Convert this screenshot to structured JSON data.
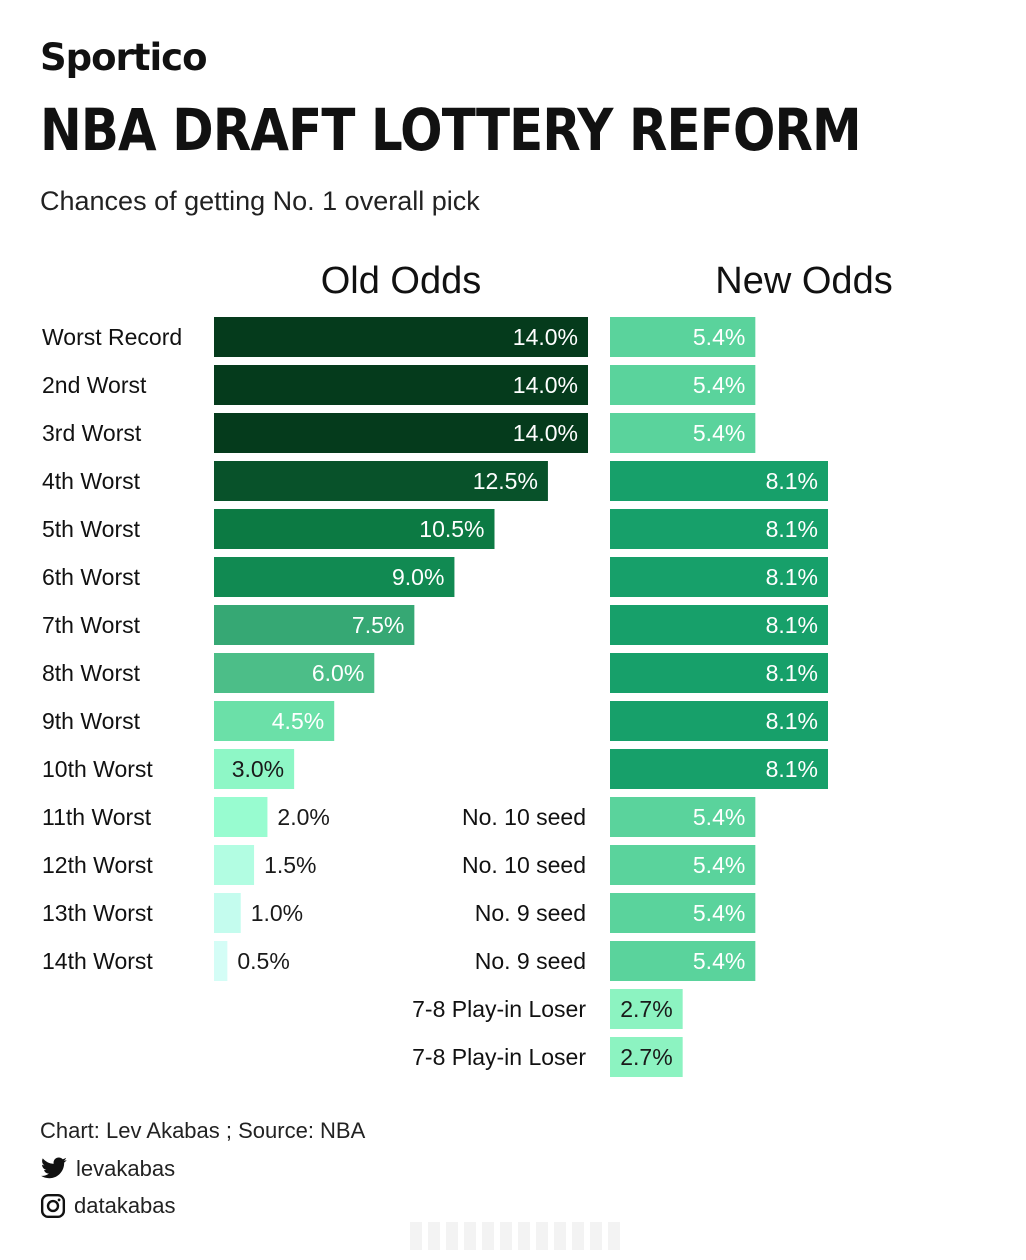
{
  "brand": "Sportico",
  "headline": "NBA DRAFT LOTTERY REFORM",
  "subtitle": "Chances of getting No. 1 overall pick",
  "chart_data": {
    "type": "bar",
    "orientation": "horizontal",
    "series": [
      {
        "name": "Old Odds",
        "categories": [
          "Worst Record",
          "2nd Worst",
          "3rd Worst",
          "4th Worst",
          "5th Worst",
          "6th Worst",
          "7th Worst",
          "8th Worst",
          "9th Worst",
          "10th Worst",
          "11th Worst",
          "12th Worst",
          "13th Worst",
          "14th Worst"
        ],
        "values": [
          14.0,
          14.0,
          14.0,
          12.5,
          10.5,
          9.0,
          7.5,
          6.0,
          4.5,
          3.0,
          2.0,
          1.5,
          1.0,
          0.5
        ],
        "labels": [
          "14.0%",
          "14.0%",
          "14.0%",
          "12.5%",
          "10.5%",
          "9.0%",
          "7.5%",
          "6.0%",
          "4.5%",
          "3.0%",
          "2.0%",
          "1.5%",
          "1.0%",
          "0.5%"
        ]
      },
      {
        "name": "New Odds",
        "categories": [
          "",
          "",
          "",
          "",
          "",
          "",
          "",
          "",
          "",
          "",
          "No. 10 seed",
          "No. 10 seed",
          "No. 9 seed",
          "No. 9 seed",
          "7-8 Play-in Loser",
          "7-8 Play-in Loser"
        ],
        "values": [
          5.4,
          5.4,
          5.4,
          8.1,
          8.1,
          8.1,
          8.1,
          8.1,
          8.1,
          8.1,
          5.4,
          5.4,
          5.4,
          5.4,
          2.7,
          2.7
        ],
        "labels": [
          "5.4%",
          "5.4%",
          "5.4%",
          "8.1%",
          "8.1%",
          "8.1%",
          "8.1%",
          "8.1%",
          "8.1%",
          "8.1%",
          "5.4%",
          "5.4%",
          "5.4%",
          "5.4%",
          "2.7%",
          "2.7%"
        ]
      }
    ],
    "colors": {
      "old": [
        "#053b1c",
        "#053b1c",
        "#053b1c",
        "#08522a",
        "#0c7a43",
        "#118a52",
        "#36a874",
        "#4cbe88",
        "#6be0a8",
        "#8ef7c6",
        "#98fcd0",
        "#b2fde2",
        "#c4fcee",
        "#d4fdf6"
      ],
      "new": {
        "5.4": "#5ad39c",
        "8.1": "#17a06a",
        "2.7": "#8cf3c1"
      }
    }
  },
  "footer": {
    "credit": "Chart: Lev Akabas ; Source: NBA",
    "twitter": "levakabas",
    "instagram": "datakabas"
  }
}
